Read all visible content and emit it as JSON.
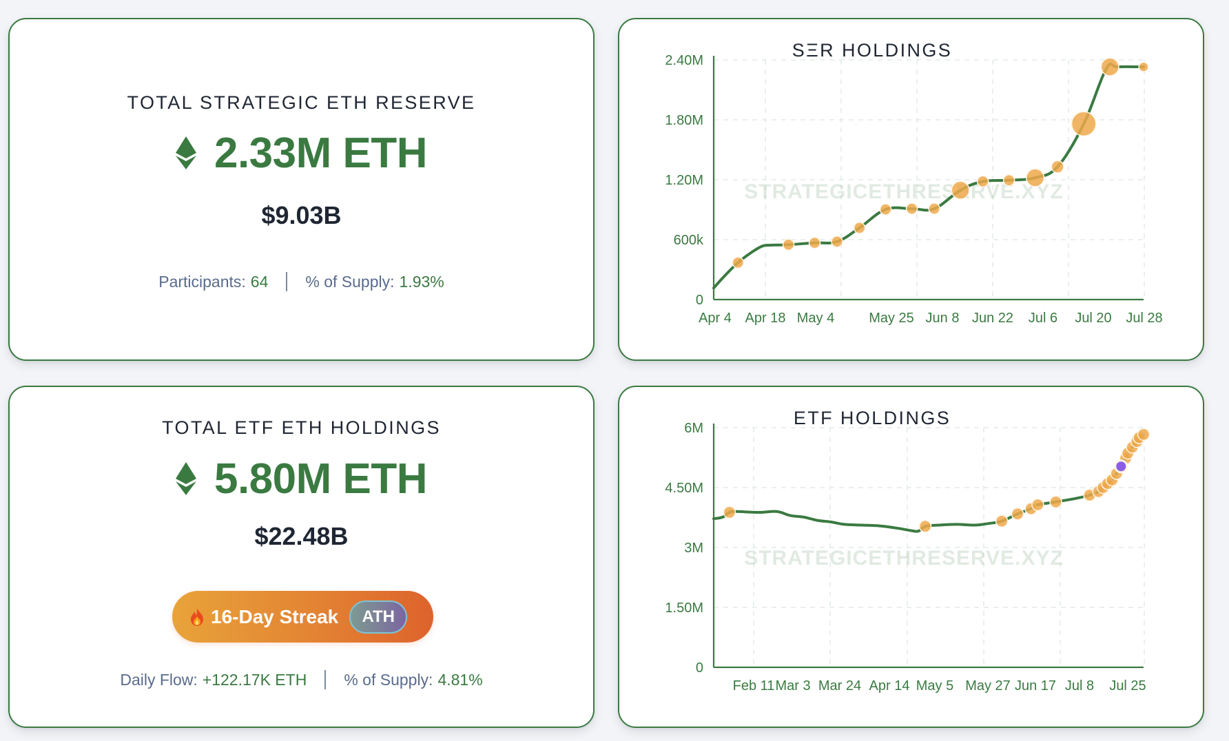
{
  "colors": {
    "brand_green": "#3a7a41",
    "marker_orange": "#eda84a",
    "marker_purple": "#8b5ce6",
    "text_dark": "#1f2633",
    "text_muted": "#5a6b8c",
    "grid": "#e2ebe6"
  },
  "ser_card": {
    "title": "TOTAL STRATEGIC ETH RESERVE",
    "icon": "ethereum-icon",
    "amount": "2.33M ETH",
    "usd_value": "$9.03B",
    "stats": [
      {
        "label": "Participants:",
        "value": "64"
      },
      {
        "label": "% of Supply:",
        "value": "1.93%"
      }
    ]
  },
  "etf_card": {
    "title": "TOTAL ETF ETH HOLDINGS",
    "icon": "ethereum-icon",
    "amount": "5.80M ETH",
    "usd_value": "$22.48B",
    "streak": {
      "icon": "fire-icon",
      "label": "16-Day Streak",
      "badge": "ATH"
    },
    "stats": [
      {
        "label": "Daily Flow:",
        "value": "+122.17K ETH"
      },
      {
        "label": "% of Supply:",
        "value": "4.81%"
      }
    ]
  },
  "chart_data": [
    {
      "type": "line",
      "title": "SΞR HOLDINGS",
      "watermark": "STRATEGICETHRESERVE.XYZ",
      "xlabel": "",
      "ylabel": "",
      "ylim": [
        0,
        2400000
      ],
      "yticks": [
        {
          "value": 0,
          "label": "0"
        },
        {
          "value": 600000,
          "label": "600k"
        },
        {
          "value": 1200000,
          "label": "1.20M"
        },
        {
          "value": 1800000,
          "label": "1.80M"
        },
        {
          "value": 2400000,
          "label": "2.40M"
        }
      ],
      "xlim_days": [
        0,
        115
      ],
      "xticks": [
        {
          "day": 0,
          "label": "Apr 4"
        },
        {
          "day": 14,
          "label": "Apr 18"
        },
        {
          "day": 27,
          "label": "May 4"
        },
        {
          "day": 47,
          "label": "May 25"
        },
        {
          "day": 61,
          "label": "Jun 8"
        },
        {
          "day": 75,
          "label": "Jun 22"
        },
        {
          "day": 88,
          "label": "Jul 6"
        },
        {
          "day": 102,
          "label": "Jul 20"
        },
        {
          "day": 115,
          "label": "Jul 28"
        }
      ],
      "grid": true,
      "line": [
        [
          0,
          116000
        ],
        [
          3,
          240000
        ],
        [
          6.5,
          370000
        ],
        [
          10,
          470000
        ],
        [
          13,
          535000
        ],
        [
          15,
          545000
        ],
        [
          20,
          550000
        ],
        [
          27,
          568000
        ],
        [
          33,
          580000
        ],
        [
          39,
          718000
        ],
        [
          46,
          903000
        ],
        [
          53,
          910000
        ],
        [
          59,
          910000
        ],
        [
          66,
          1095000
        ],
        [
          72,
          1183000
        ],
        [
          79,
          1195000
        ],
        [
          86,
          1220000
        ],
        [
          92,
          1330000
        ],
        [
          99,
          1760000
        ],
        [
          105,
          2310000
        ],
        [
          108,
          2330000
        ],
        [
          115,
          2330000
        ]
      ],
      "points": [
        {
          "day": 6.5,
          "value": 370000,
          "size": 1
        },
        {
          "day": 20,
          "value": 550000,
          "size": 1
        },
        {
          "day": 27,
          "value": 568000,
          "size": 1
        },
        {
          "day": 33,
          "value": 580000,
          "size": 1
        },
        {
          "day": 39,
          "value": 718000,
          "size": 1
        },
        {
          "day": 46,
          "value": 903000,
          "size": 1
        },
        {
          "day": 53,
          "value": 910000,
          "size": 1
        },
        {
          "day": 59,
          "value": 910000,
          "size": 1
        },
        {
          "day": 66,
          "value": 1095000,
          "size": 1.6
        },
        {
          "day": 72,
          "value": 1183000,
          "size": 1
        },
        {
          "day": 79,
          "value": 1195000,
          "size": 1
        },
        {
          "day": 86,
          "value": 1220000,
          "size": 1.6
        },
        {
          "day": 92,
          "value": 1330000,
          "size": 1.1
        },
        {
          "day": 99,
          "value": 1760000,
          "size": 2.2
        },
        {
          "day": 106,
          "value": 2330000,
          "size": 1.6
        },
        {
          "day": 115,
          "value": 2330000,
          "size": 0.85
        }
      ]
    },
    {
      "type": "line",
      "title": "ETF HOLDINGS",
      "watermark": "STRATEGICETHRESERVE.XYZ",
      "xlabel": "",
      "ylabel": "",
      "ylim": [
        0,
        6000000
      ],
      "yticks": [
        {
          "value": 0,
          "label": "0"
        },
        {
          "value": 1500000,
          "label": "1.50M"
        },
        {
          "value": 3000000,
          "label": "3M"
        },
        {
          "value": 4500000,
          "label": "4.50M"
        },
        {
          "value": 6000000,
          "label": "6M"
        }
      ],
      "xlim_days": [
        0,
        191
      ],
      "xticks": [
        {
          "day": 17,
          "label": "Feb 11"
        },
        {
          "day": 37,
          "label": "Mar 3"
        },
        {
          "day": 58,
          "label": "Mar 24"
        },
        {
          "day": 79,
          "label": "Apr 14"
        },
        {
          "day": 100,
          "label": "May 5"
        },
        {
          "day": 122,
          "label": "May 27"
        },
        {
          "day": 143,
          "label": "Jun 17"
        },
        {
          "day": 164,
          "label": "Jul 8"
        },
        {
          "day": 181,
          "label": "Jul 25"
        }
      ],
      "grid": true,
      "line": [
        [
          0,
          3720000
        ],
        [
          4,
          3760000
        ],
        [
          7,
          3880000
        ],
        [
          10,
          3900000
        ],
        [
          20,
          3880000
        ],
        [
          28,
          3900000
        ],
        [
          34,
          3800000
        ],
        [
          40,
          3760000
        ],
        [
          46,
          3680000
        ],
        [
          52,
          3640000
        ],
        [
          58,
          3580000
        ],
        [
          66,
          3560000
        ],
        [
          74,
          3540000
        ],
        [
          82,
          3480000
        ],
        [
          88,
          3420000
        ],
        [
          91,
          3410000
        ],
        [
          94,
          3530000
        ],
        [
          100,
          3560000
        ],
        [
          108,
          3580000
        ],
        [
          116,
          3560000
        ],
        [
          122,
          3600000
        ],
        [
          128,
          3660000
        ],
        [
          135,
          3840000
        ],
        [
          141,
          3970000
        ],
        [
          144,
          4070000
        ],
        [
          152,
          4140000
        ],
        [
          161,
          4230000
        ],
        [
          167,
          4310000
        ],
        [
          171,
          4400000
        ],
        [
          173,
          4500000
        ],
        [
          175,
          4600000
        ],
        [
          177,
          4690000
        ],
        [
          179,
          4850000
        ],
        [
          181,
          5030000
        ],
        [
          183,
          5230000
        ],
        [
          184,
          5360000
        ],
        [
          186,
          5510000
        ],
        [
          188,
          5650000
        ],
        [
          189,
          5750000
        ],
        [
          191,
          5830000
        ]
      ],
      "points": [
        {
          "day": 7,
          "value": 3880000,
          "color": "orange"
        },
        {
          "day": 94,
          "value": 3530000,
          "color": "orange"
        },
        {
          "day": 128,
          "value": 3660000,
          "color": "orange"
        },
        {
          "day": 135,
          "value": 3840000,
          "color": "orange"
        },
        {
          "day": 141,
          "value": 3970000,
          "color": "orange"
        },
        {
          "day": 144,
          "value": 4070000,
          "color": "orange"
        },
        {
          "day": 152,
          "value": 4140000,
          "color": "orange"
        },
        {
          "day": 167,
          "value": 4310000,
          "color": "orange"
        },
        {
          "day": 171,
          "value": 4400000,
          "color": "orange"
        },
        {
          "day": 173,
          "value": 4500000,
          "color": "orange"
        },
        {
          "day": 175,
          "value": 4600000,
          "color": "orange"
        },
        {
          "day": 177,
          "value": 4690000,
          "color": "orange"
        },
        {
          "day": 179,
          "value": 4850000,
          "color": "orange"
        },
        {
          "day": 183,
          "value": 5230000,
          "color": "orange"
        },
        {
          "day": 184,
          "value": 5360000,
          "color": "orange"
        },
        {
          "day": 186,
          "value": 5510000,
          "color": "orange"
        },
        {
          "day": 188,
          "value": 5650000,
          "color": "orange"
        },
        {
          "day": 189,
          "value": 5750000,
          "color": "orange"
        },
        {
          "day": 191,
          "value": 5830000,
          "color": "orange"
        },
        {
          "day": 181,
          "value": 5030000,
          "color": "purple"
        }
      ]
    }
  ]
}
